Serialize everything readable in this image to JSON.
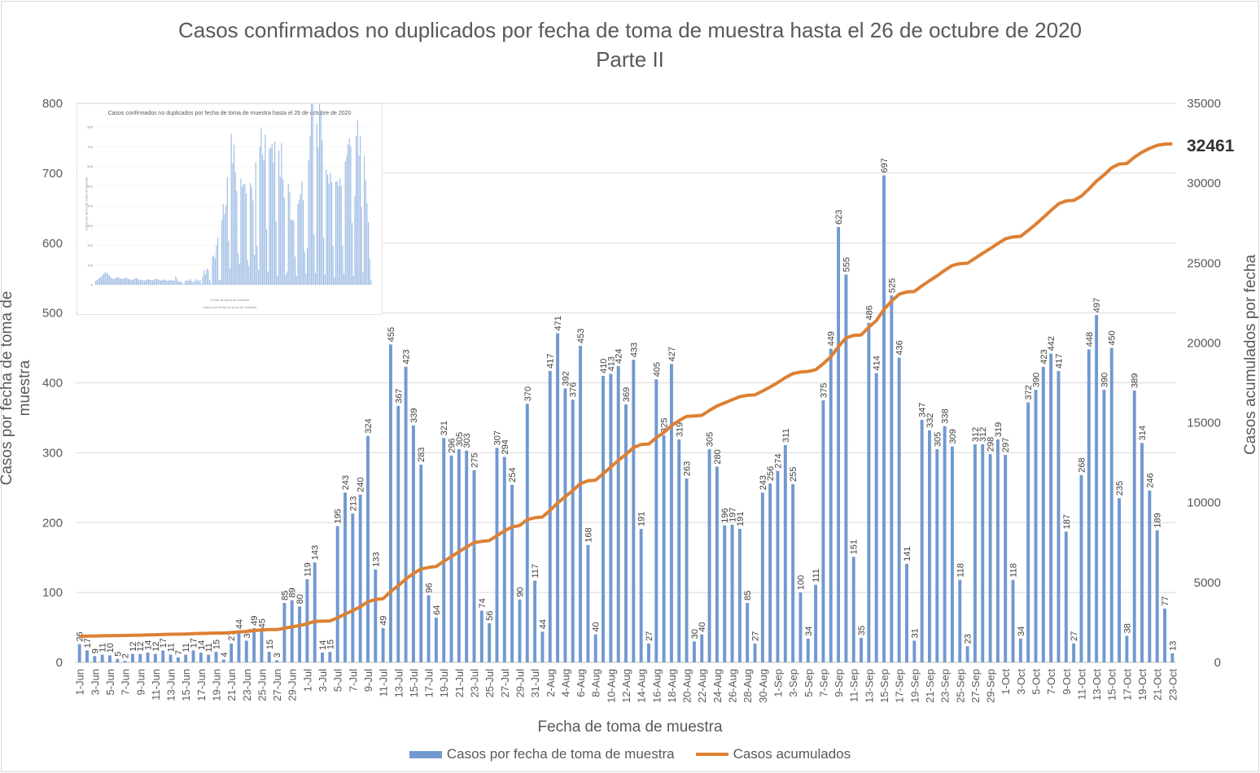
{
  "chart_data": {
    "type": "bar+line",
    "title": "Casos confirmados no duplicados por fecha de toma de muestra hasta el 26 de octubre de 2020",
    "subtitle": "Parte II",
    "xlabel": "Fecha de toma de muestra",
    "ylabel_left": "Casos por fecha de toma de muestra",
    "ylabel_right": "Casos acumulados por fecha",
    "ylim_left": [
      0,
      800
    ],
    "yticks_left": [
      0,
      100,
      200,
      300,
      400,
      500,
      600,
      700,
      800
    ],
    "ylim_right": [
      0,
      35000
    ],
    "yticks_right": [
      0,
      5000,
      10000,
      15000,
      20000,
      25000,
      30000,
      35000
    ],
    "final_cumulative_label": "32461",
    "series": [
      {
        "name": "Casos por fecha de toma de muestra",
        "type": "bar",
        "color": "#7199d0"
      },
      {
        "name": "Casos acumulados",
        "type": "line",
        "color": "#dd8033"
      }
    ],
    "daily_labels_sample": [
      26,
      17,
      9,
      11,
      10,
      5,
      2,
      12,
      12,
      14,
      12,
      17,
      11,
      7,
      11,
      17,
      14,
      11,
      15,
      4,
      27,
      44,
      31,
      49,
      45,
      15,
      3,
      85,
      89,
      80,
      119,
      143,
      14,
      15,
      195,
      243,
      213,
      240,
      324,
      133,
      49,
      455,
      367,
      423,
      339,
      283,
      96,
      64,
      321,
      296,
      305,
      303,
      275,
      74,
      56,
      307,
      294,
      254,
      90,
      370,
      117,
      44,
      417,
      471,
      392,
      376,
      453,
      168,
      40,
      410,
      413,
      424,
      369,
      433,
      191,
      27,
      405,
      325,
      427,
      319,
      263,
      30,
      40,
      305,
      280,
      196,
      197,
      191,
      85,
      27,
      243,
      256,
      274,
      311,
      255,
      100,
      34,
      111,
      375,
      449,
      623,
      555,
      151,
      35,
      486,
      414,
      697,
      525,
      436,
      141,
      31,
      347,
      332,
      305,
      338,
      309,
      118,
      23,
      312,
      312,
      298,
      319,
      297,
      118,
      34,
      372,
      390,
      423,
      442,
      417,
      187,
      27,
      268,
      448,
      497,
      390,
      450,
      235,
      38,
      389,
      314,
      246,
      189,
      77,
      13
    ],
    "cumulative_start": 1600,
    "cumulative_end": 32461,
    "x_tick_labels": [
      "1-Jun",
      "3-Jun",
      "5-Jun",
      "7-Jun",
      "9-Jun",
      "11-Jun",
      "13-Jun",
      "15-Jun",
      "17-Jun",
      "19-Jun",
      "21-Jun",
      "23-Jun",
      "25-Jun",
      "27-Jun",
      "29-Jun",
      "1-Jul",
      "3-Jul",
      "5-Jul",
      "7-Jul",
      "9-Jul",
      "11-Jul",
      "13-Jul",
      "15-Jul",
      "17-Jul",
      "19-Jul",
      "21-Jul",
      "23-Jul",
      "25-Jul",
      "27-Jul",
      "29-Jul",
      "31-Jul",
      "2-Aug",
      "4-Aug",
      "6-Aug",
      "8-Aug",
      "10-Aug",
      "12-Aug",
      "14-Aug",
      "16-Aug",
      "18-Aug",
      "20-Aug",
      "22-Aug",
      "24-Aug",
      "26-Aug",
      "28-Aug",
      "30-Aug",
      "1-Sep",
      "3-Sep",
      "5-Sep",
      "7-Sep",
      "9-Sep",
      "11-Sep",
      "13-Sep",
      "15-Sep",
      "17-Sep",
      "19-Sep",
      "21-Sep",
      "23-Sep",
      "25-Sep",
      "27-Sep",
      "29-Sep",
      "1-Oct",
      "3-Oct",
      "5-Oct",
      "7-Oct",
      "9-Oct",
      "11-Oct",
      "13-Oct",
      "15-Oct",
      "17-Oct",
      "19-Oct",
      "21-Oct",
      "23-Oct"
    ],
    "grid": true,
    "legend_position": "bottom"
  },
  "inset": {
    "title": "Casos confirmados no duplicados por fecha de toma de muestra hasta el 26 de octubre de 2020",
    "xlabel": "Fecha de toma de muestra",
    "ylabel": "Casos por fecha de toma de muestra",
    "legend": "Casos por fecha de toma de muestra",
    "yticks": [
      "0",
      "100",
      "200",
      "300",
      "400",
      "500",
      "600",
      "700",
      "800"
    ]
  },
  "legend": {
    "bar_label": "Casos por fecha de toma de muestra",
    "line_label": "Casos acumulados"
  }
}
